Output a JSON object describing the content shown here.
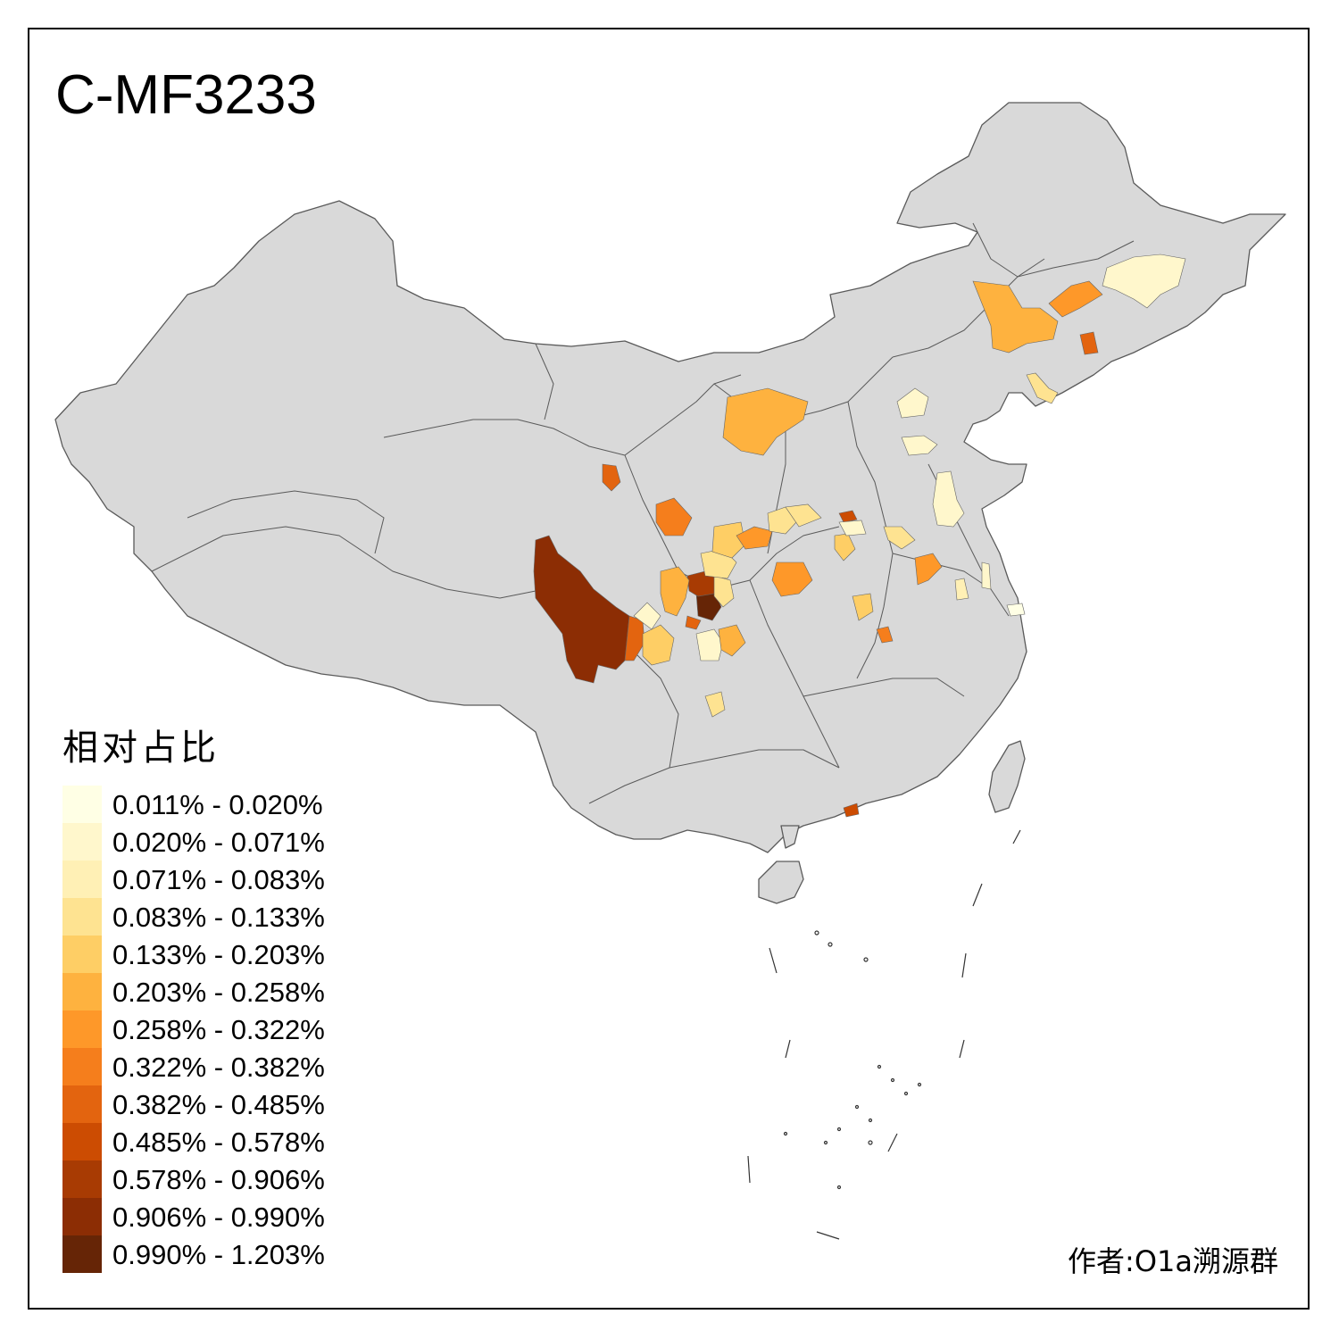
{
  "title": "C-MF3233",
  "legend": {
    "title": "相对占比",
    "items": [
      {
        "label": "0.011% - 0.020%",
        "color": "#ffffe5"
      },
      {
        "label": "0.020% - 0.071%",
        "color": "#fff7cc"
      },
      {
        "label": "0.071% - 0.083%",
        "color": "#fff0b5"
      },
      {
        "label": "0.083% - 0.133%",
        "color": "#fee391"
      },
      {
        "label": "0.133% - 0.203%",
        "color": "#fece65"
      },
      {
        "label": "0.203% - 0.258%",
        "color": "#feb23f"
      },
      {
        "label": "0.258% - 0.322%",
        "color": "#fe9829"
      },
      {
        "label": "0.322% - 0.382%",
        "color": "#f57e1c"
      },
      {
        "label": "0.382% - 0.485%",
        "color": "#e3640f"
      },
      {
        "label": "0.485% - 0.578%",
        "color": "#cc4c02"
      },
      {
        "label": "0.578% - 0.906%",
        "color": "#a83b03"
      },
      {
        "label": "0.906% - 0.990%",
        "color": "#8c2d04"
      },
      {
        "label": "0.990% - 1.203%",
        "color": "#662506"
      }
    ]
  },
  "credit": "作者:O1a溯源群",
  "colors": {
    "land": "#d9d9d9",
    "border": "#5a5a5a"
  }
}
